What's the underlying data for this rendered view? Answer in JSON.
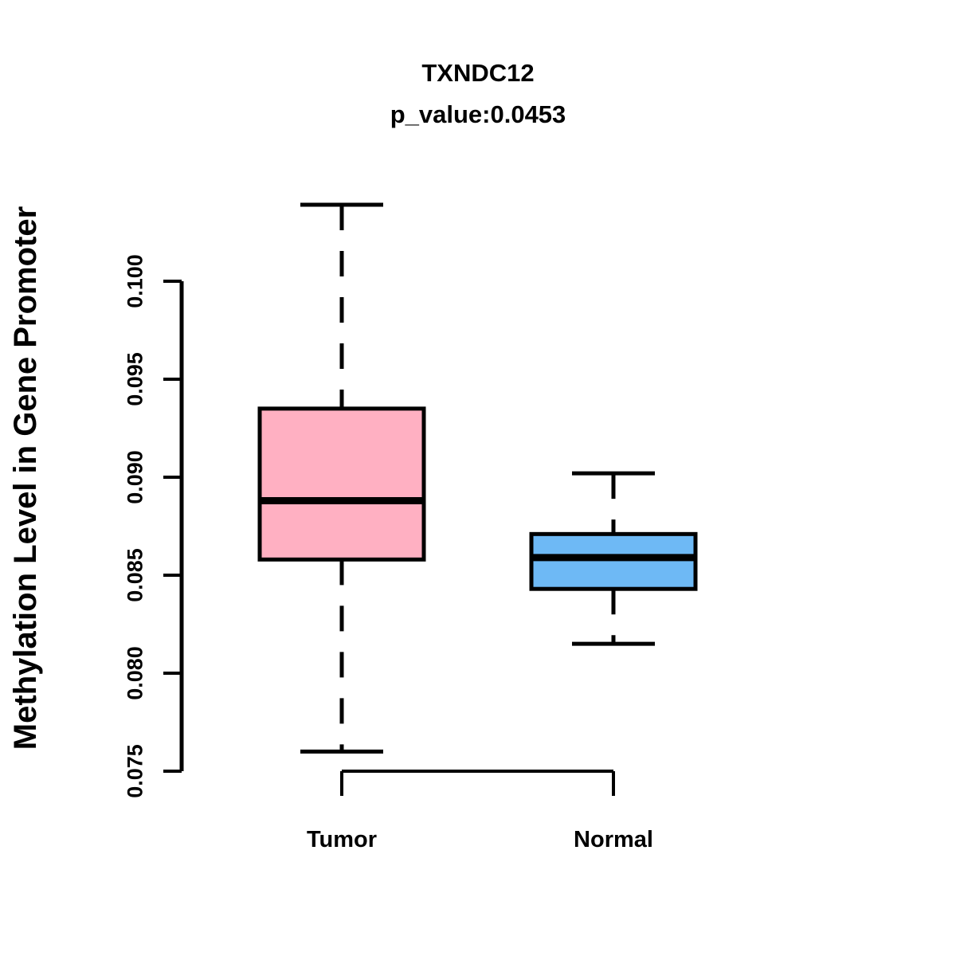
{
  "title": "TXNDC12",
  "subtitle": "p_value:0.0453",
  "chart_data": {
    "type": "boxplot",
    "title": "TXNDC12",
    "subtitle": "p_value:0.0453",
    "p_value": 0.0453,
    "gene": "TXNDC12",
    "xlabel": "",
    "ylabel": "Methylation Level in Gene Promoter",
    "yticks": [
      0.075,
      0.08,
      0.085,
      0.09,
      0.095,
      0.1
    ],
    "ytick_labels": [
      "0.075",
      "0.080",
      "0.085",
      "0.090",
      "0.095",
      "0.100"
    ],
    "ylim": [
      0.0728,
      0.1043
    ],
    "axis_range": [
      0.075,
      0.1
    ],
    "grid": false,
    "legend": "none",
    "categories": [
      "Tumor",
      "Normal"
    ],
    "series": [
      {
        "name": "Tumor",
        "fill_color": "#ffb0c2",
        "whisker_low": 0.076,
        "q1": 0.0858,
        "median": 0.0888,
        "q3": 0.0935,
        "whisker_high": 0.1039
      },
      {
        "name": "Normal",
        "fill_color": "#6eb9f5",
        "whisker_low": 0.0815,
        "q1": 0.0843,
        "median": 0.0859,
        "q3": 0.0871,
        "whisker_high": 0.0902
      }
    ],
    "colors": {
      "tumor_fill": "#ffb0c2",
      "normal_fill": "#6eb9f5",
      "stroke": "#000000",
      "background": "#ffffff"
    }
  }
}
